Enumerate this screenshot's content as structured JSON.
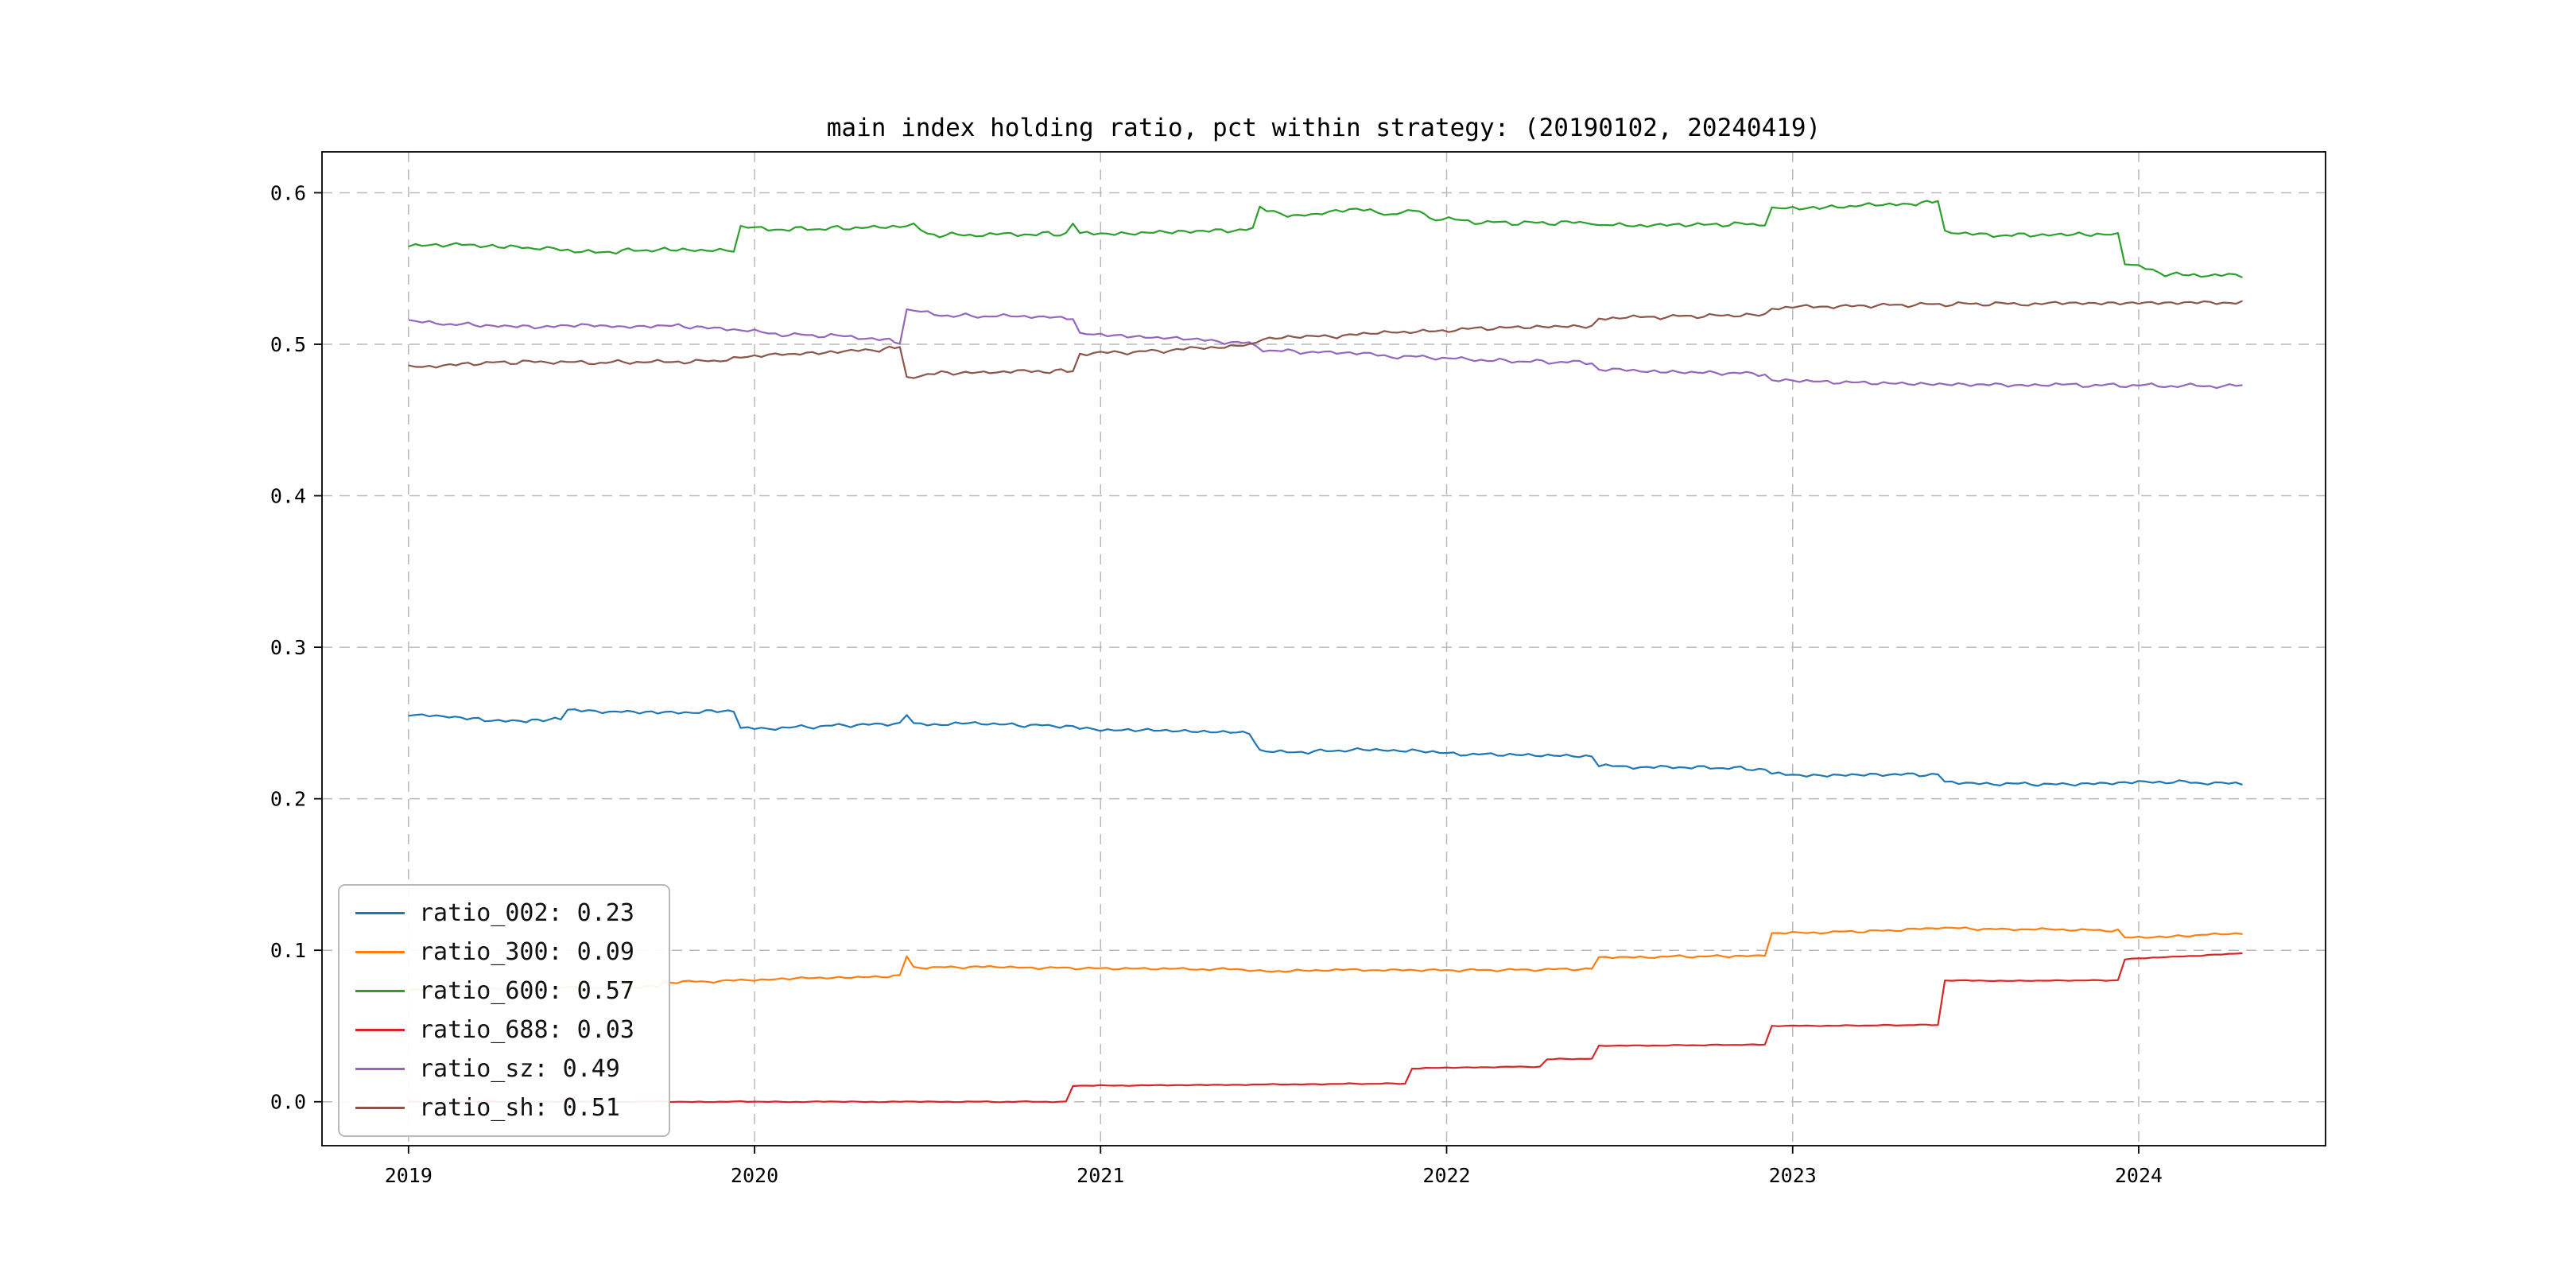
{
  "style": {
    "background": "#ffffff",
    "grid_color": "#b9b9b9",
    "spine_color": "#000000",
    "text_color": "#000000"
  },
  "chart_data": {
    "type": "line",
    "title": "main index holding ratio, pct within strategy: (20190102, 20240419)",
    "xlabel": "",
    "ylabel": "",
    "x_unit": "year",
    "date_range": [
      "20190102",
      "20240419"
    ],
    "grid": true,
    "legend_position": "lower-left",
    "xlim": [
      2018.75,
      2024.54
    ],
    "ylim": [
      -0.029,
      0.627
    ],
    "x_ticks": [
      2019,
      2020,
      2021,
      2022,
      2023,
      2024
    ],
    "x_tick_labels": [
      "2019",
      "2020",
      "2021",
      "2022",
      "2023",
      "2024"
    ],
    "y_ticks": [
      0.0,
      0.1,
      0.2,
      0.3,
      0.4,
      0.5,
      0.6
    ],
    "y_tick_labels": [
      "0.0",
      "0.1",
      "0.2",
      "0.3",
      "0.4",
      "0.5",
      "0.6"
    ],
    "series": [
      {
        "name": "ratio_002",
        "legend_label": "ratio_002: 0.23",
        "color": "#1f77b4",
        "noise": 0.0012,
        "points": [
          [
            2019.0,
            0.256
          ],
          [
            2019.1,
            0.2545
          ],
          [
            2019.22,
            0.252
          ],
          [
            2019.34,
            0.2515
          ],
          [
            2019.44,
            0.2525
          ],
          [
            2019.46,
            0.259
          ],
          [
            2019.58,
            0.2575
          ],
          [
            2019.72,
            0.257
          ],
          [
            2019.86,
            0.2575
          ],
          [
            2019.94,
            0.258
          ],
          [
            2019.96,
            0.2465
          ],
          [
            2020.1,
            0.247
          ],
          [
            2020.26,
            0.2485
          ],
          [
            2020.42,
            0.2495
          ],
          [
            2020.44,
            0.2555
          ],
          [
            2020.46,
            0.249
          ],
          [
            2020.62,
            0.25
          ],
          [
            2020.78,
            0.2485
          ],
          [
            2020.9,
            0.248
          ],
          [
            2020.94,
            0.246
          ],
          [
            2021.1,
            0.2455
          ],
          [
            2021.28,
            0.2445
          ],
          [
            2021.43,
            0.2435
          ],
          [
            2021.46,
            0.2315
          ],
          [
            2021.6,
            0.231
          ],
          [
            2021.76,
            0.2325
          ],
          [
            2021.9,
            0.2315
          ],
          [
            2022.04,
            0.2295
          ],
          [
            2022.2,
            0.229
          ],
          [
            2022.42,
            0.228
          ],
          [
            2022.44,
            0.2215
          ],
          [
            2022.6,
            0.221
          ],
          [
            2022.78,
            0.2205
          ],
          [
            2022.92,
            0.2195
          ],
          [
            2022.94,
            0.216
          ],
          [
            2023.1,
            0.2155
          ],
          [
            2023.26,
            0.216
          ],
          [
            2023.42,
            0.216
          ],
          [
            2023.44,
            0.2105
          ],
          [
            2023.6,
            0.21
          ],
          [
            2023.78,
            0.2095
          ],
          [
            2023.96,
            0.2105
          ],
          [
            2024.1,
            0.2115
          ],
          [
            2024.2,
            0.21
          ],
          [
            2024.3,
            0.21
          ]
        ]
      },
      {
        "name": "ratio_300",
        "legend_label": "ratio_300: 0.09",
        "color": "#ff7f0e",
        "noise": 0.0008,
        "points": [
          [
            2019.0,
            0.074
          ],
          [
            2019.2,
            0.0745
          ],
          [
            2019.4,
            0.075
          ],
          [
            2019.6,
            0.0755
          ],
          [
            2019.72,
            0.076
          ],
          [
            2019.74,
            0.079
          ],
          [
            2019.9,
            0.0795
          ],
          [
            2019.96,
            0.08
          ],
          [
            2020.1,
            0.0815
          ],
          [
            2020.28,
            0.082
          ],
          [
            2020.42,
            0.083
          ],
          [
            2020.44,
            0.096
          ],
          [
            2020.46,
            0.0885
          ],
          [
            2020.64,
            0.089
          ],
          [
            2020.82,
            0.0885
          ],
          [
            2021.0,
            0.088
          ],
          [
            2021.2,
            0.0878
          ],
          [
            2021.43,
            0.0872
          ],
          [
            2021.46,
            0.086
          ],
          [
            2021.64,
            0.0868
          ],
          [
            2021.82,
            0.087
          ],
          [
            2022.0,
            0.0868
          ],
          [
            2022.2,
            0.087
          ],
          [
            2022.42,
            0.0878
          ],
          [
            2022.44,
            0.095
          ],
          [
            2022.62,
            0.0958
          ],
          [
            2022.8,
            0.096
          ],
          [
            2022.92,
            0.0965
          ],
          [
            2022.94,
            0.111
          ],
          [
            2023.1,
            0.112
          ],
          [
            2023.26,
            0.1128
          ],
          [
            2023.42,
            0.1148
          ],
          [
            2023.5,
            0.1142
          ],
          [
            2023.64,
            0.1138
          ],
          [
            2023.8,
            0.1135
          ],
          [
            2023.94,
            0.113
          ],
          [
            2023.96,
            0.108
          ],
          [
            2024.08,
            0.109
          ],
          [
            2024.18,
            0.11
          ],
          [
            2024.3,
            0.111
          ]
        ]
      },
      {
        "name": "ratio_600",
        "legend_label": "ratio_600: 0.57",
        "color": "#2ca02c",
        "noise": 0.0015,
        "points": [
          [
            2019.0,
            0.5655
          ],
          [
            2019.12,
            0.566
          ],
          [
            2019.26,
            0.5645
          ],
          [
            2019.38,
            0.5635
          ],
          [
            2019.48,
            0.561
          ],
          [
            2019.6,
            0.5615
          ],
          [
            2019.74,
            0.5625
          ],
          [
            2019.88,
            0.562
          ],
          [
            2019.94,
            0.5615
          ],
          [
            2019.96,
            0.577
          ],
          [
            2020.1,
            0.576
          ],
          [
            2020.24,
            0.5765
          ],
          [
            2020.38,
            0.5775
          ],
          [
            2020.46,
            0.578
          ],
          [
            2020.5,
            0.5725
          ],
          [
            2020.64,
            0.572
          ],
          [
            2020.78,
            0.5725
          ],
          [
            2020.9,
            0.573
          ],
          [
            2020.92,
            0.58
          ],
          [
            2020.94,
            0.5725
          ],
          [
            2021.1,
            0.5735
          ],
          [
            2021.26,
            0.5745
          ],
          [
            2021.42,
            0.5755
          ],
          [
            2021.44,
            0.576
          ],
          [
            2021.46,
            0.59
          ],
          [
            2021.54,
            0.5845
          ],
          [
            2021.64,
            0.5865
          ],
          [
            2021.74,
            0.589
          ],
          [
            2021.84,
            0.586
          ],
          [
            2021.92,
            0.5885
          ],
          [
            2021.95,
            0.5835
          ],
          [
            2022.1,
            0.5805
          ],
          [
            2022.26,
            0.58
          ],
          [
            2022.42,
            0.5805
          ],
          [
            2022.44,
            0.578
          ],
          [
            2022.6,
            0.5788
          ],
          [
            2022.78,
            0.579
          ],
          [
            2022.92,
            0.5795
          ],
          [
            2022.94,
            0.589
          ],
          [
            2023.06,
            0.59
          ],
          [
            2023.2,
            0.5915
          ],
          [
            2023.34,
            0.5925
          ],
          [
            2023.42,
            0.595
          ],
          [
            2023.44,
            0.5735
          ],
          [
            2023.58,
            0.572
          ],
          [
            2023.74,
            0.5722
          ],
          [
            2023.88,
            0.5728
          ],
          [
            2023.94,
            0.5725
          ],
          [
            2023.96,
            0.5535
          ],
          [
            2024.06,
            0.547
          ],
          [
            2024.16,
            0.5455
          ],
          [
            2024.3,
            0.545
          ]
        ]
      },
      {
        "name": "ratio_688",
        "legend_label": "ratio_688: 0.03",
        "color": "#d62728",
        "noise": 0.0003,
        "points": [
          [
            2019.0,
            0.0
          ],
          [
            2019.5,
            0.0
          ],
          [
            2020.0,
            0.0
          ],
          [
            2020.5,
            0.0
          ],
          [
            2020.9,
            0.0
          ],
          [
            2020.92,
            0.0105
          ],
          [
            2021.1,
            0.0108
          ],
          [
            2021.4,
            0.0112
          ],
          [
            2021.7,
            0.0118
          ],
          [
            2021.88,
            0.012
          ],
          [
            2021.9,
            0.022
          ],
          [
            2022.1,
            0.0228
          ],
          [
            2022.27,
            0.0232
          ],
          [
            2022.29,
            0.028
          ],
          [
            2022.42,
            0.0285
          ],
          [
            2022.44,
            0.0368
          ],
          [
            2022.62,
            0.0372
          ],
          [
            2022.8,
            0.0375
          ],
          [
            2022.92,
            0.0378
          ],
          [
            2022.94,
            0.05
          ],
          [
            2023.1,
            0.0502
          ],
          [
            2023.28,
            0.0505
          ],
          [
            2023.42,
            0.0508
          ],
          [
            2023.44,
            0.08
          ],
          [
            2023.6,
            0.0798
          ],
          [
            2023.78,
            0.08
          ],
          [
            2023.94,
            0.0802
          ],
          [
            2023.96,
            0.094
          ],
          [
            2024.08,
            0.0955
          ],
          [
            2024.18,
            0.0965
          ],
          [
            2024.3,
            0.098
          ]
        ]
      },
      {
        "name": "ratio_sz",
        "legend_label": "ratio_sz: 0.49",
        "color": "#9467bd",
        "noise": 0.0013,
        "points": [
          [
            2019.0,
            0.5155
          ],
          [
            2019.12,
            0.5135
          ],
          [
            2019.26,
            0.512
          ],
          [
            2019.4,
            0.5115
          ],
          [
            2019.52,
            0.5125
          ],
          [
            2019.64,
            0.5115
          ],
          [
            2019.78,
            0.512
          ],
          [
            2019.9,
            0.5105
          ],
          [
            2019.96,
            0.509
          ],
          [
            2020.08,
            0.5065
          ],
          [
            2020.22,
            0.5055
          ],
          [
            2020.36,
            0.5035
          ],
          [
            2020.42,
            0.5015
          ],
          [
            2020.44,
            0.5225
          ],
          [
            2020.54,
            0.519
          ],
          [
            2020.68,
            0.5185
          ],
          [
            2020.82,
            0.518
          ],
          [
            2020.92,
            0.5175
          ],
          [
            2020.94,
            0.5065
          ],
          [
            2021.06,
            0.5055
          ],
          [
            2021.2,
            0.504
          ],
          [
            2021.34,
            0.502
          ],
          [
            2021.43,
            0.5005
          ],
          [
            2021.47,
            0.4965
          ],
          [
            2021.56,
            0.495
          ],
          [
            2021.7,
            0.4945
          ],
          [
            2021.84,
            0.492
          ],
          [
            2021.95,
            0.4915
          ],
          [
            2022.1,
            0.4895
          ],
          [
            2022.26,
            0.4885
          ],
          [
            2022.42,
            0.488
          ],
          [
            2022.44,
            0.4832
          ],
          [
            2022.6,
            0.482
          ],
          [
            2022.76,
            0.4812
          ],
          [
            2022.92,
            0.4805
          ],
          [
            2022.94,
            0.476
          ],
          [
            2023.1,
            0.4752
          ],
          [
            2023.28,
            0.4742
          ],
          [
            2023.46,
            0.4735
          ],
          [
            2023.64,
            0.4732
          ],
          [
            2023.82,
            0.473
          ],
          [
            2024.0,
            0.4728
          ],
          [
            2024.15,
            0.4725
          ],
          [
            2024.3,
            0.4725
          ]
        ]
      },
      {
        "name": "ratio_sh",
        "legend_label": "ratio_sh: 0.51",
        "color": "#8c564b",
        "noise": 0.0013,
        "points": [
          [
            2019.0,
            0.4845
          ],
          [
            2019.12,
            0.4865
          ],
          [
            2019.26,
            0.488
          ],
          [
            2019.4,
            0.4885
          ],
          [
            2019.52,
            0.4875
          ],
          [
            2019.64,
            0.4885
          ],
          [
            2019.78,
            0.488
          ],
          [
            2019.9,
            0.4895
          ],
          [
            2019.96,
            0.491
          ],
          [
            2020.08,
            0.4935
          ],
          [
            2020.22,
            0.4945
          ],
          [
            2020.36,
            0.4965
          ],
          [
            2020.42,
            0.4985
          ],
          [
            2020.44,
            0.4775
          ],
          [
            2020.54,
            0.481
          ],
          [
            2020.68,
            0.4815
          ],
          [
            2020.82,
            0.482
          ],
          [
            2020.92,
            0.4825
          ],
          [
            2020.94,
            0.4935
          ],
          [
            2021.06,
            0.4945
          ],
          [
            2021.2,
            0.496
          ],
          [
            2021.34,
            0.498
          ],
          [
            2021.43,
            0.4995
          ],
          [
            2021.47,
            0.5035
          ],
          [
            2021.56,
            0.505
          ],
          [
            2021.7,
            0.5055
          ],
          [
            2021.84,
            0.508
          ],
          [
            2021.95,
            0.5085
          ],
          [
            2022.1,
            0.5105
          ],
          [
            2022.26,
            0.5115
          ],
          [
            2022.42,
            0.512
          ],
          [
            2022.44,
            0.5168
          ],
          [
            2022.6,
            0.518
          ],
          [
            2022.76,
            0.5188
          ],
          [
            2022.92,
            0.5195
          ],
          [
            2022.94,
            0.524
          ],
          [
            2023.1,
            0.5248
          ],
          [
            2023.28,
            0.5258
          ],
          [
            2023.46,
            0.5265
          ],
          [
            2023.64,
            0.5268
          ],
          [
            2023.82,
            0.527
          ],
          [
            2024.0,
            0.5272
          ],
          [
            2024.15,
            0.5275
          ],
          [
            2024.3,
            0.5275
          ]
        ]
      }
    ]
  }
}
